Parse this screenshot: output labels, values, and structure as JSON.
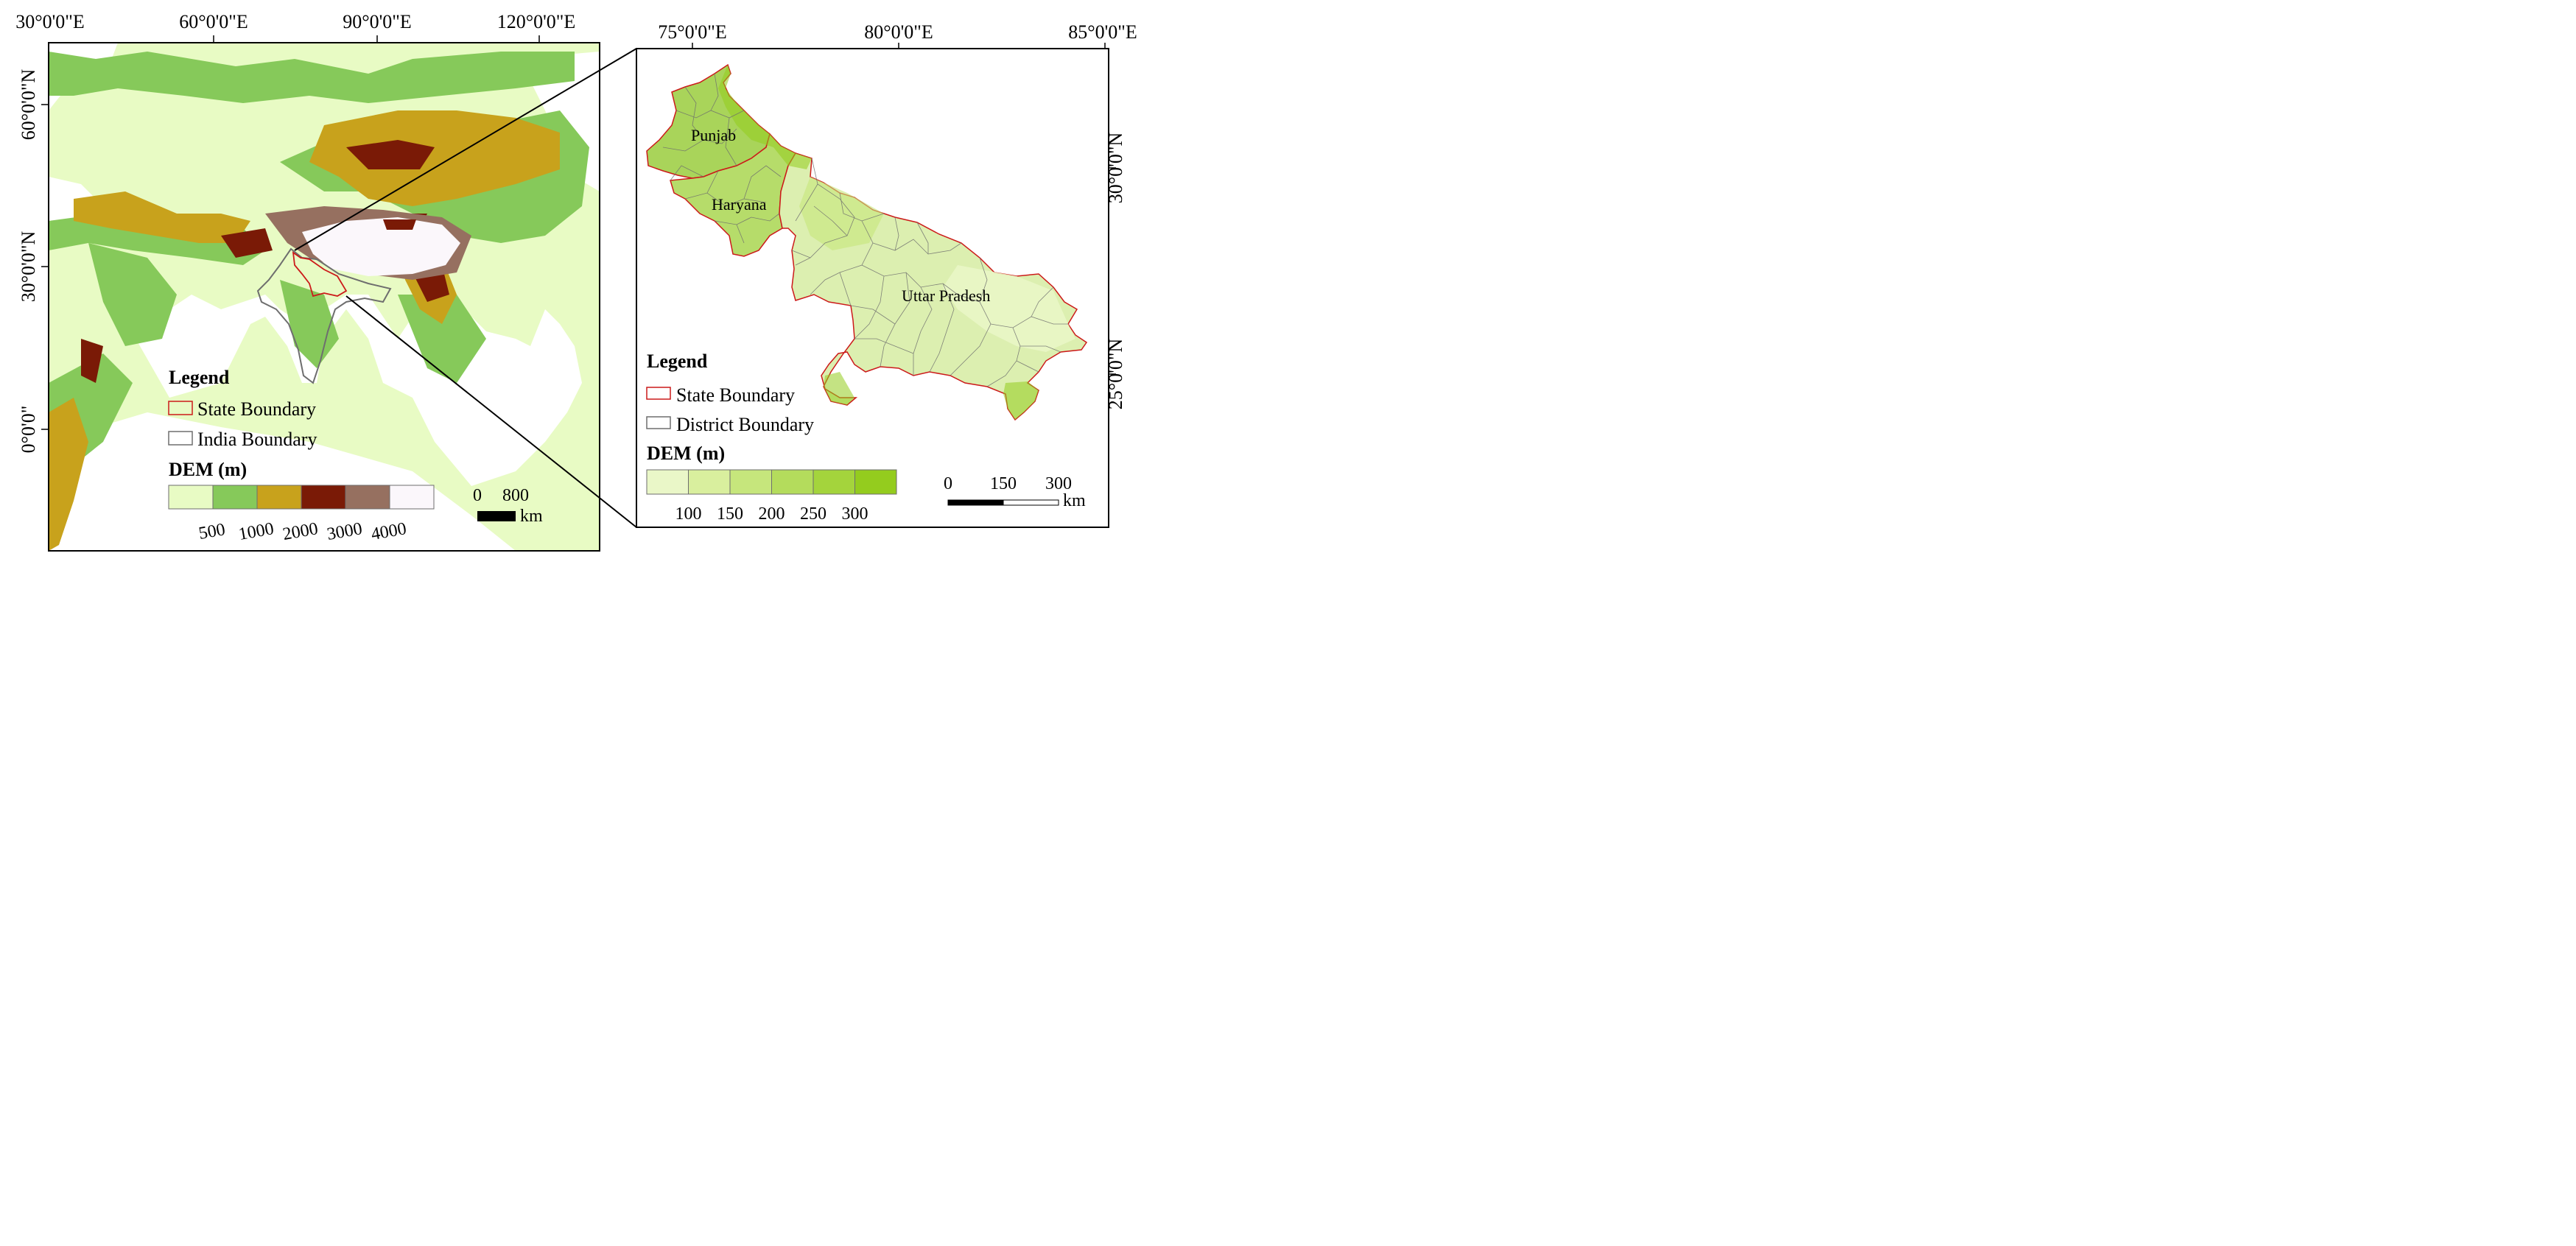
{
  "left_map": {
    "lon_ticks": [
      "30°0'0\"E",
      "60°0'0\"E",
      "90°0'0\"E",
      "120°0'0\"E"
    ],
    "lat_ticks": [
      "60°0'0\"N",
      "30°0'0\"N",
      "0°0'0\""
    ],
    "legend": {
      "title": "Legend",
      "state_boundary": "State Boundary",
      "india_boundary": "India Boundary",
      "dem_title": "DEM (m)",
      "dem_colors": [
        "#e8fbc4",
        "#86c95a",
        "#c8a21c",
        "#7a1a06",
        "#967060",
        "#fbf7fb"
      ],
      "dem_labels": [
        "500",
        "1000",
        "2000",
        "3000",
        "4000"
      ]
    },
    "scale": {
      "values": [
        "0",
        "800"
      ],
      "unit": "km"
    }
  },
  "right_map": {
    "lon_ticks": [
      "75°0'0\"E",
      "80°0'0\"E",
      "85°0'0\"E"
    ],
    "lat_ticks": [
      "30°0'0\"N",
      "25°0'0\"N"
    ],
    "states": [
      "Punjab",
      "Haryana",
      "Uttar Pradesh"
    ],
    "legend": {
      "title": "Legend",
      "state_boundary": "State Boundary",
      "district_boundary": "District Boundary",
      "dem_title": "DEM (m)",
      "dem_colors": [
        "#eaf7c8",
        "#d9ef9e",
        "#c6e67c",
        "#b4dc5c",
        "#a4d43c",
        "#94cc1e"
      ],
      "dem_labels": [
        "100",
        "150",
        "200",
        "250",
        "300"
      ]
    },
    "scale": {
      "values": [
        "0",
        "150",
        "300"
      ],
      "unit": "km"
    }
  },
  "colors": {
    "state_boundary": "#cc1a1a",
    "india_boundary": "#6e6e6e",
    "district_boundary": "#6e6e6e",
    "frame": "#000000"
  }
}
